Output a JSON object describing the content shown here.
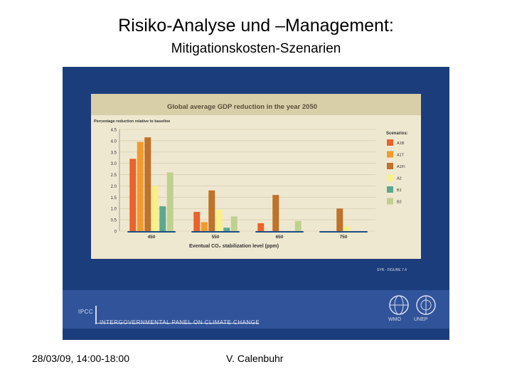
{
  "slide": {
    "title": "Risiko-Analyse und –Management:",
    "subtitle": "Mitigationskosten-Szenarien",
    "footer_date": "28/03/09, 14:00-18:00",
    "footer_author": "V. Calenbuhr"
  },
  "ipcc": {
    "short_name": "IPCC",
    "full_name": "INTERGOVERNMENTAL PANEL ON CLIMATE CHANGE",
    "figure_ref": "SYR - FIGURE 7.4",
    "wmo_label": "WMO",
    "unep_label": "UNEP",
    "panel_color": "#1c3d7c"
  },
  "chart_data": {
    "type": "bar",
    "title": "Global average GDP reduction in the year 2050",
    "ylabel": "Percentage reduction relative to baseline",
    "xlabel": "Eventual CO₂ stabilization level (ppm)",
    "legend_title": "Scenarios:",
    "legend_position": "right",
    "ylim": [
      0,
      4.5
    ],
    "yticks": [
      "0",
      "0.5",
      "1.0",
      "1.5",
      "2.0",
      "2.5",
      "3.0",
      "3.5",
      "4.0",
      "4.5"
    ],
    "ytick_values": [
      0,
      0.5,
      1.0,
      1.5,
      2.0,
      2.5,
      3.0,
      3.5,
      4.0,
      4.5
    ],
    "grid": true,
    "categories": [
      "450",
      "550",
      "650",
      "750"
    ],
    "series": [
      {
        "name": "A1B",
        "color": "#e8642a",
        "values": [
          3.2,
          0.85,
          0.35,
          0.0
        ]
      },
      {
        "name": "A1T",
        "color": "#f39a2e",
        "values": [
          3.95,
          0.4,
          0.0,
          0.0
        ]
      },
      {
        "name": "A1FI",
        "color": "#c0712a",
        "values": [
          4.15,
          1.8,
          1.6,
          1.0
        ]
      },
      {
        "name": "A2",
        "color": "#faf08a",
        "values": [
          2.0,
          0.95,
          0.0,
          0.2
        ]
      },
      {
        "name": "B1",
        "color": "#5aa98f",
        "values": [
          1.1,
          0.15,
          0.0,
          0.0
        ]
      },
      {
        "name": "B2",
        "color": "#bfd190",
        "values": [
          2.6,
          0.65,
          0.45,
          0.0
        ]
      }
    ]
  }
}
